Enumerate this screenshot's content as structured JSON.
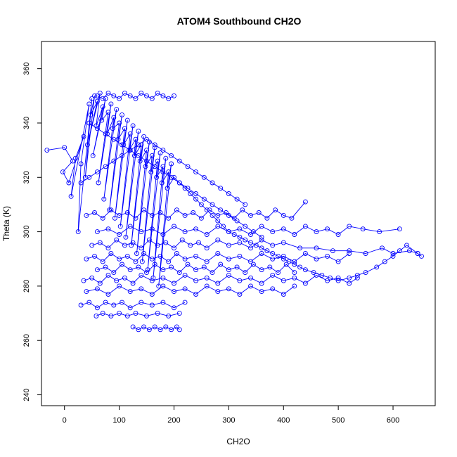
{
  "chart_data": {
    "type": "scatter",
    "title": "ATOM4 Southbound CH2O",
    "xlabel": "CH2O",
    "ylabel": "Theta (K)",
    "xlim": [
      -42,
      677
    ],
    "ylim": [
      236,
      370
    ],
    "xticks": [
      0,
      100,
      200,
      300,
      400,
      500,
      600
    ],
    "yticks": [
      240,
      260,
      280,
      300,
      320,
      340,
      360
    ],
    "grid": false,
    "legend": "none",
    "color": "#0000ff",
    "marker": "open-circle",
    "connected": true,
    "series": [
      {
        "x": [
          -32,
          0,
          15,
          -3,
          8,
          35,
          20,
          12,
          45,
          30,
          25,
          50,
          38,
          55,
          48,
          60,
          42,
          65,
          58,
          70,
          52,
          75,
          68,
          80,
          62,
          85,
          78,
          90,
          72,
          95,
          88,
          100,
          82,
          105,
          98,
          110,
          92,
          115,
          108,
          120,
          102,
          125,
          118,
          130,
          112,
          135,
          128,
          140,
          122,
          145,
          138,
          150,
          132,
          155,
          148,
          160,
          142,
          165,
          158,
          170,
          152,
          175,
          168,
          180,
          162,
          185,
          178,
          190,
          172,
          195,
          188,
          200,
          210,
          220,
          230,
          240,
          250,
          260,
          270,
          280,
          290,
          300,
          310,
          320,
          330,
          340,
          350,
          360,
          370,
          380,
          390,
          400,
          410,
          420,
          430,
          440,
          455,
          470,
          485,
          500,
          520,
          535,
          550,
          570,
          585,
          600,
          612,
          625,
          645,
          652
        ],
        "y": [
          330,
          331,
          326,
          322,
          318,
          335,
          327,
          313,
          347,
          325,
          300,
          349,
          320,
          350,
          343,
          348,
          332,
          351,
          339,
          346,
          328,
          349,
          341,
          344,
          318,
          347,
          336,
          342,
          312,
          345,
          338,
          340,
          308,
          343,
          334,
          338,
          305,
          341,
          332,
          336,
          302,
          339,
          330,
          334,
          298,
          337,
          328,
          332,
          295,
          335,
          326,
          330,
          292,
          333,
          324,
          328,
          289,
          331,
          322,
          326,
          286,
          329,
          320,
          324,
          283,
          327,
          318,
          322,
          280,
          325,
          316,
          320,
          318,
          316,
          314,
          312,
          310,
          308,
          306,
          304,
          302,
          300,
          299,
          298,
          297,
          296,
          295,
          294,
          293,
          292,
          291,
          290,
          289,
          288,
          287,
          286,
          285,
          284,
          283,
          282,
          283,
          284,
          285,
          287,
          289,
          291,
          293,
          295,
          292,
          291
        ]
      },
      {
        "x": [
          40,
          55,
          70,
          85,
          100,
          115,
          130,
          145,
          160,
          175,
          190,
          205,
          220,
          240,
          260,
          280,
          300,
          320,
          340,
          360,
          380,
          400,
          420,
          440,
          460,
          480,
          500,
          520
        ],
        "y": [
          290,
          291,
          289,
          292,
          290,
          291,
          289,
          292,
          290,
          291,
          289,
          292,
          290,
          291,
          289,
          292,
          290,
          291,
          289,
          292,
          290,
          291,
          289,
          292,
          290,
          291,
          289,
          292
        ]
      },
      {
        "x": [
          35,
          50,
          65,
          80,
          95,
          110,
          125,
          140,
          160,
          180,
          200,
          220,
          240,
          260,
          280,
          300,
          320,
          340,
          360,
          380,
          400,
          420,
          440,
          460,
          480,
          500,
          520,
          535
        ],
        "y": [
          282,
          283,
          281,
          284,
          282,
          283,
          281,
          284,
          282,
          283,
          281,
          284,
          282,
          283,
          281,
          284,
          282,
          283,
          281,
          284,
          282,
          283,
          281,
          284,
          282,
          283,
          281,
          283
        ]
      },
      {
        "x": [
          40,
          60,
          80,
          100,
          120,
          140,
          160,
          180,
          200,
          220,
          240,
          260,
          280,
          300,
          320,
          340,
          360,
          380,
          400,
          420
        ],
        "y": [
          278,
          279,
          277,
          280,
          278,
          279,
          277,
          280,
          278,
          279,
          277,
          280,
          278,
          279,
          277,
          280,
          278,
          279,
          277,
          280
        ]
      },
      {
        "x": [
          30,
          45,
          60,
          75,
          90,
          105,
          120,
          140,
          160,
          180,
          200,
          220
        ],
        "y": [
          273,
          274,
          272,
          274,
          273,
          274,
          272,
          274,
          273,
          274,
          272,
          274
        ]
      },
      {
        "x": [
          58,
          70,
          85,
          100,
          115,
          130,
          150,
          170,
          190,
          210
        ],
        "y": [
          269,
          270,
          269,
          270,
          269,
          270,
          269,
          270,
          269,
          270
        ]
      },
      {
        "x": [
          125,
          135,
          145,
          155,
          165,
          175,
          185,
          195,
          205,
          210
        ],
        "y": [
          265,
          264,
          265,
          264,
          265,
          264,
          265,
          264,
          265,
          264
        ]
      },
      {
        "x": [
          60,
          80,
          100,
          120,
          140,
          160,
          180,
          200,
          220,
          240,
          260,
          280,
          300,
          320,
          340,
          360,
          380,
          400,
          420,
          440,
          460,
          480,
          500,
          520,
          545,
          575,
          612
        ],
        "y": [
          300,
          301,
          299,
          302,
          300,
          301,
          299,
          302,
          300,
          301,
          299,
          302,
          300,
          301,
          299,
          302,
          300,
          301,
          299,
          302,
          300,
          301,
          299,
          302,
          301,
          300,
          301
        ]
      },
      {
        "x": [
          50,
          65,
          80,
          95,
          110,
          125,
          140,
          155,
          170,
          185,
          200,
          215,
          230,
          245,
          260,
          280,
          300,
          320,
          340,
          360,
          380,
          400,
          430,
          460,
          490,
          520,
          550,
          580,
          600,
          630,
          645
        ],
        "y": [
          295,
          296,
          294,
          297,
          295,
          296,
          294,
          297,
          295,
          296,
          294,
          297,
          295,
          296,
          294,
          297,
          295,
          296,
          294,
          297,
          295,
          296,
          294,
          294,
          293,
          293,
          292,
          294,
          292,
          293,
          292
        ]
      },
      {
        "x": [
          60,
          75,
          90,
          105,
          120,
          135,
          150,
          165,
          180,
          195,
          210,
          225,
          240,
          255,
          270,
          285,
          300,
          315,
          330,
          345,
          360,
          375,
          390,
          405,
          420
        ],
        "y": [
          286,
          287,
          285,
          288,
          286,
          287,
          285,
          288,
          286,
          287,
          285,
          288,
          286,
          287,
          285,
          288,
          286,
          287,
          285,
          288,
          286,
          287,
          285,
          288,
          285
        ]
      },
      {
        "x": [
          60,
          70,
          80,
          90,
          100,
          110,
          120,
          130,
          140,
          150,
          160,
          170,
          180,
          190,
          200
        ],
        "y": [
          350,
          349,
          351,
          350,
          349,
          351,
          350,
          349,
          351,
          350,
          349,
          351,
          350,
          349,
          350
        ]
      },
      {
        "x": [
          30,
          45,
          60,
          75,
          90,
          105,
          120,
          135,
          150,
          165,
          180,
          195,
          210,
          225,
          240,
          255,
          270,
          285,
          300,
          315,
          330
        ],
        "y": [
          318,
          320,
          322,
          324,
          326,
          328,
          330,
          332,
          334,
          332,
          330,
          328,
          326,
          324,
          322,
          320,
          318,
          316,
          314,
          312,
          310
        ]
      },
      {
        "x": [
          40,
          55,
          70,
          85,
          100,
          115,
          130,
          145,
          160,
          175,
          190,
          205,
          220,
          235,
          250,
          265,
          280,
          295,
          310,
          325,
          340,
          355,
          370,
          385,
          400,
          415,
          440
        ],
        "y": [
          306,
          307,
          305,
          308,
          306,
          307,
          305,
          308,
          306,
          307,
          305,
          308,
          306,
          307,
          305,
          308,
          306,
          307,
          305,
          308,
          306,
          307,
          305,
          308,
          306,
          305,
          311
        ]
      },
      {
        "x": [
          45,
          60,
          75,
          90,
          105,
          120,
          135,
          150,
          165,
          180,
          195,
          210,
          225,
          240,
          255,
          270,
          285,
          300,
          315,
          330,
          345,
          360
        ],
        "y": [
          340,
          338,
          336,
          334,
          332,
          330,
          328,
          326,
          324,
          322,
          320,
          318,
          316,
          314,
          312,
          310,
          308,
          306,
          304,
          302,
          300,
          298
        ]
      }
    ]
  }
}
